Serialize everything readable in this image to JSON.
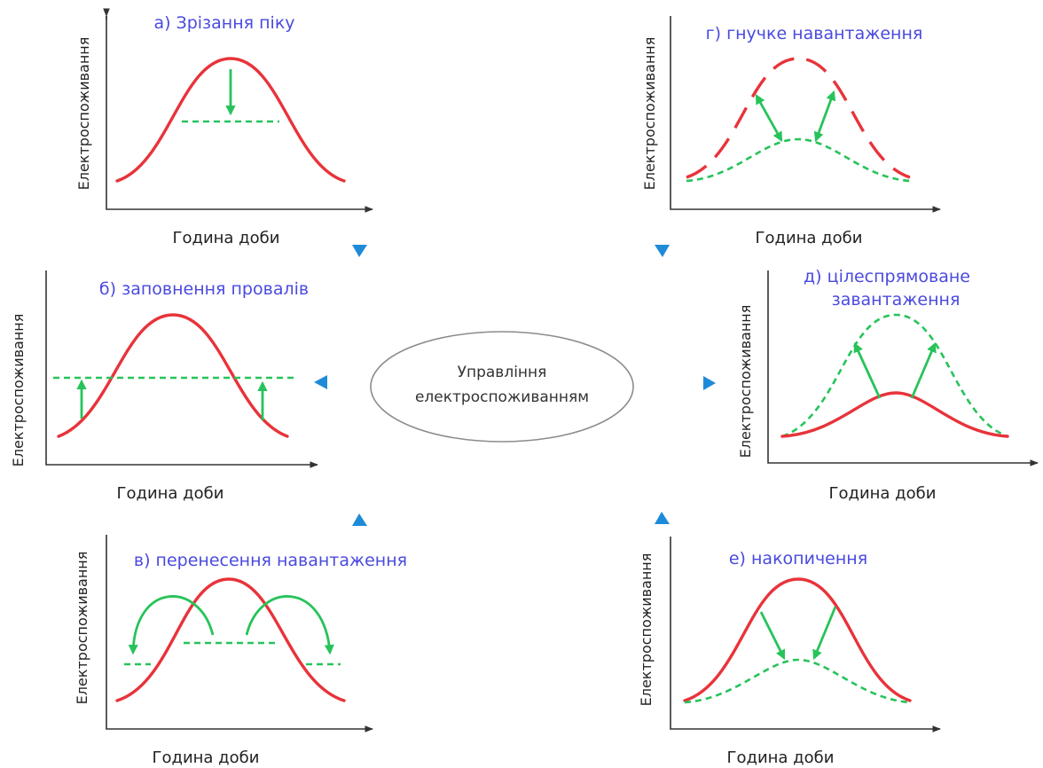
{
  "center": {
    "line1": "Управління",
    "line2": "електроспоживанням"
  },
  "axis_x_label": "Година доби",
  "axis_y_label": "Електроспоживання",
  "panels": {
    "a": {
      "title": "а) Зрізання піку"
    },
    "b": {
      "title": "б) заповнення провалів"
    },
    "v": {
      "title": "в) перенесення навантаження"
    },
    "g": {
      "title": "г) гнучке навантаження"
    },
    "d": {
      "title_line1": "д) цілеспрямоване",
      "title_line2": "завантаження"
    },
    "e": {
      "title": "е) накопичення"
    }
  },
  "colors": {
    "curve": "#e8333a",
    "modified": "#27c35a",
    "title": "#4a4adf",
    "connector": "#1e8bd9"
  }
}
